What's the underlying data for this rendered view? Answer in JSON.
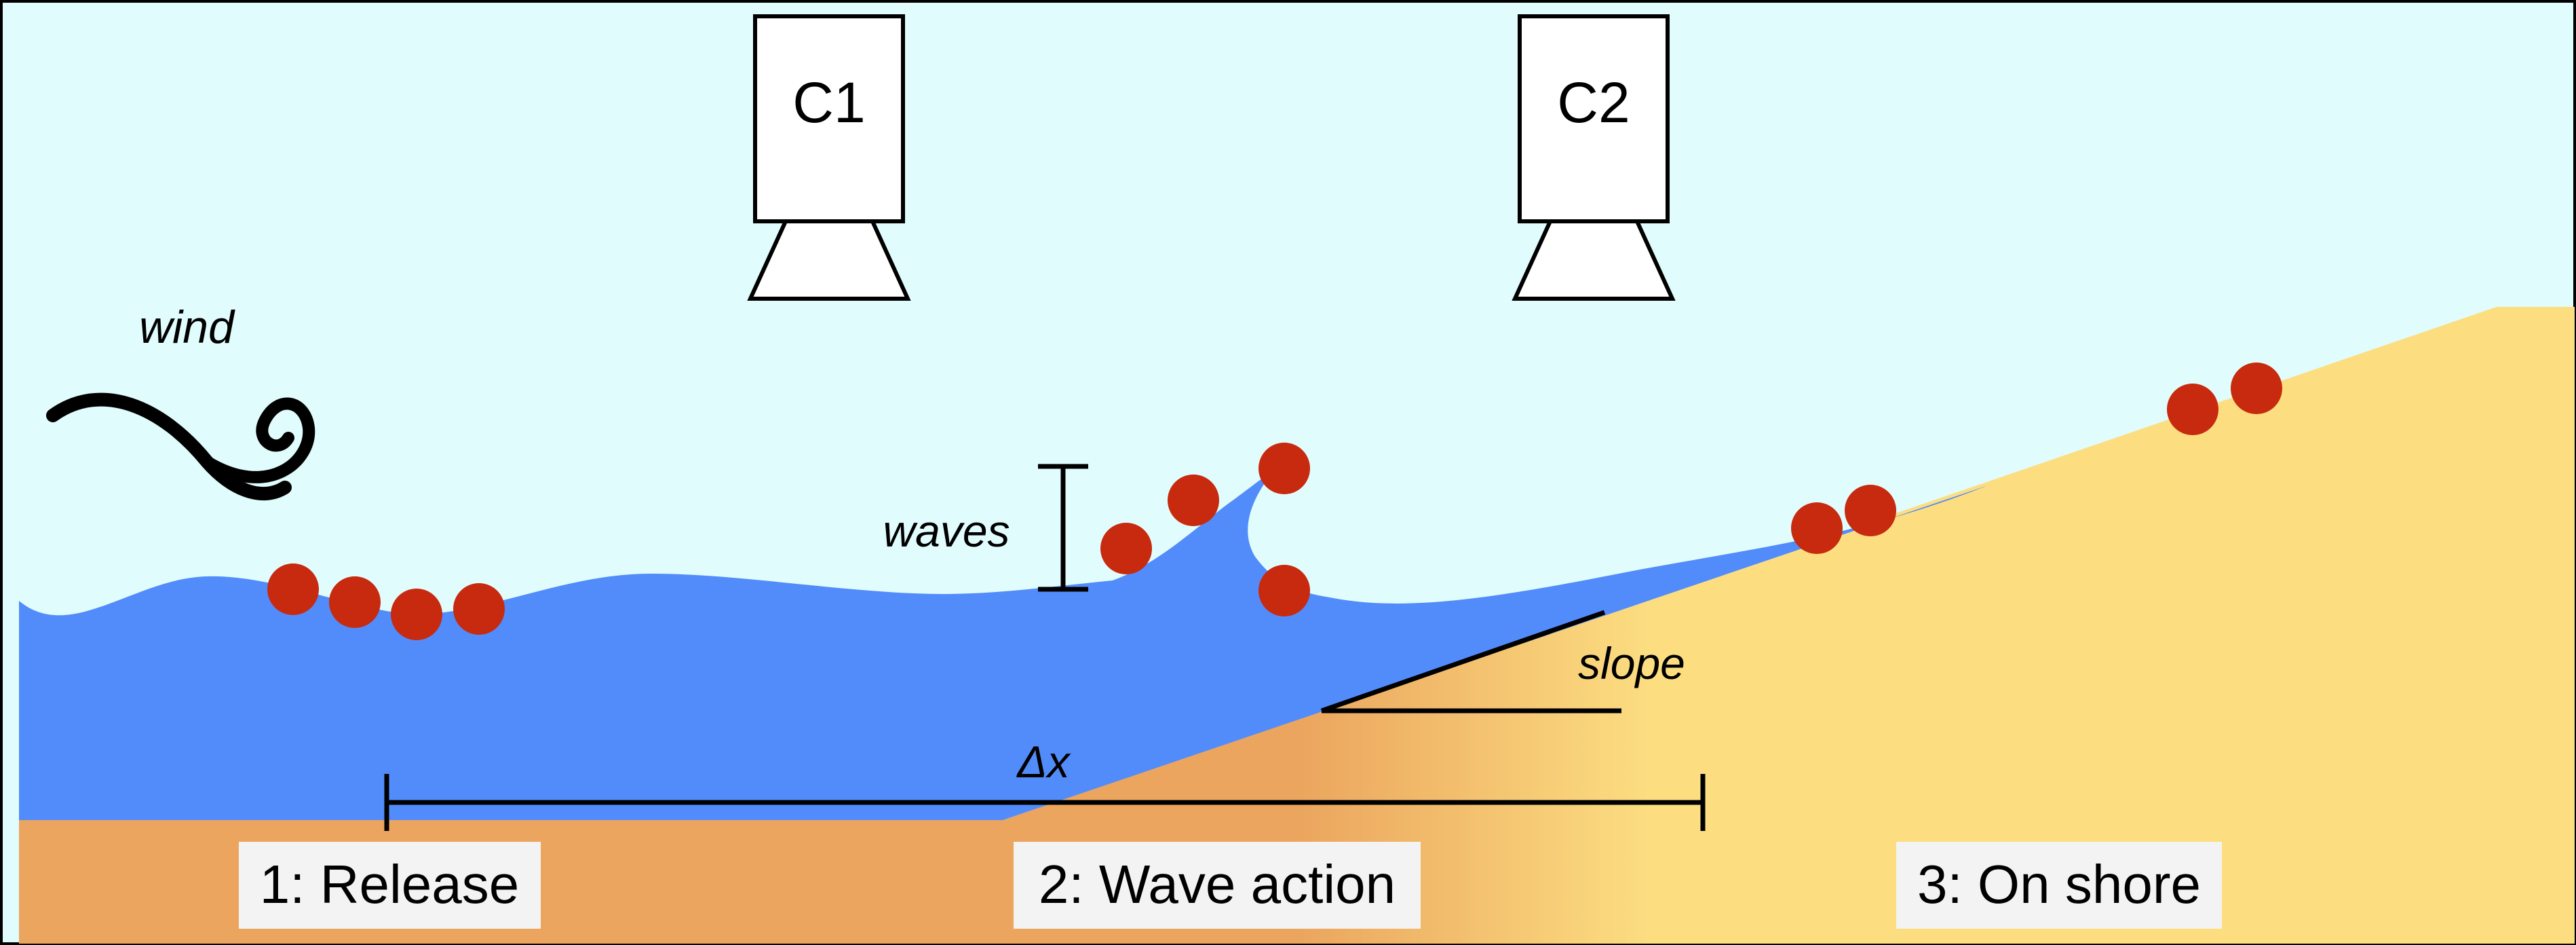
{
  "cameras": [
    {
      "label": "C1"
    },
    {
      "label": "C2"
    }
  ],
  "labels": {
    "wind": "wind",
    "waves": "waves",
    "slope": "slope",
    "delta_x": "Δx"
  },
  "stages": [
    {
      "label": "1: Release"
    },
    {
      "label": "2: Wave action"
    },
    {
      "label": "3: On shore"
    }
  ],
  "colors": {
    "sky": "#E1FCFD",
    "water": "#528CFB",
    "sand_light": "#FCDE81",
    "sand_dark": "#EBA55E",
    "particle": "#C72A0E",
    "stage_label_bg": "#F3F3F3"
  }
}
